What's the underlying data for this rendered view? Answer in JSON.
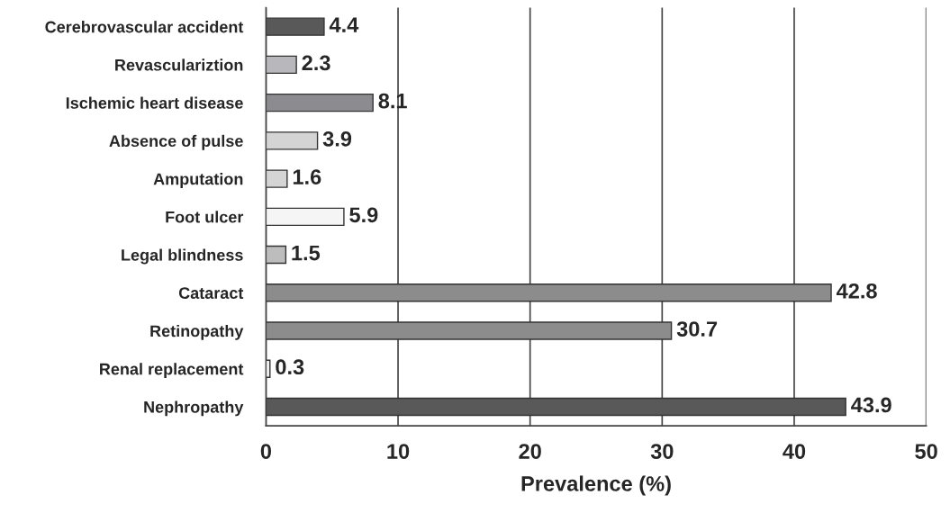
{
  "chart_data": {
    "type": "bar",
    "orientation": "horizontal",
    "xlabel": "Prevalence (%)",
    "categories": [
      "Cerebrovascular accident",
      "Revasculariztion",
      "Ischemic heart disease",
      "Absence of pulse",
      "Amputation",
      "Foot ulcer",
      "Legal blindness",
      "Cataract",
      "Retinopathy",
      "Renal replacement",
      "Nephropathy"
    ],
    "values": [
      4.4,
      2.3,
      8.1,
      3.9,
      1.6,
      5.9,
      1.5,
      42.8,
      30.7,
      0.3,
      43.9
    ],
    "colors": [
      "#595959",
      "#b8b8bc",
      "#8c8c90",
      "#d4d4d4",
      "#d4d4d4",
      "#f5f5f5",
      "#bdbdbd",
      "#8c8c8c",
      "#8c8c8c",
      "#f0f0f0",
      "#595959"
    ],
    "xlim": [
      0,
      50
    ],
    "xticks": [
      0,
      10,
      20,
      30,
      40,
      50
    ],
    "grid": "x",
    "data_labels": true
  }
}
